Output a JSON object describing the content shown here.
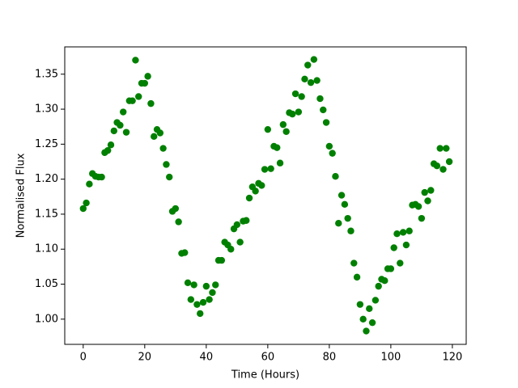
{
  "chart_data": {
    "type": "scatter",
    "xlabel": "Time (Hours)",
    "ylabel": "Normalised Flux",
    "color": "#008000",
    "x": [
      0,
      1,
      2,
      3,
      4,
      5,
      6,
      7,
      8,
      9,
      10,
      11,
      12,
      13,
      14,
      15,
      16,
      17,
      18,
      19,
      20,
      21,
      22,
      23,
      24,
      25,
      26,
      27,
      28,
      29,
      30,
      31,
      32,
      33,
      34,
      35,
      36,
      37,
      38,
      39,
      40,
      41,
      42,
      43,
      44,
      45,
      46,
      47,
      48,
      49,
      50,
      51,
      52,
      53,
      54,
      55,
      56,
      57,
      58,
      59,
      60,
      61,
      62,
      63,
      64,
      65,
      66,
      67,
      68,
      69,
      70,
      71,
      72,
      73,
      74,
      75,
      76,
      77,
      78,
      79,
      80,
      81,
      82,
      83,
      84,
      85,
      86,
      87,
      88,
      89,
      90,
      91,
      92,
      93,
      94,
      95,
      96,
      97,
      98,
      99,
      100,
      101,
      102,
      103,
      104,
      105,
      106,
      107,
      108,
      109,
      110,
      111,
      112,
      113,
      114,
      115,
      116,
      117,
      118,
      119
    ],
    "values": [
      1.158,
      1.166,
      1.193,
      1.208,
      1.204,
      1.203,
      1.203,
      1.238,
      1.241,
      1.249,
      1.269,
      1.281,
      1.277,
      1.296,
      1.267,
      1.312,
      1.312,
      1.37,
      1.318,
      1.337,
      1.337,
      1.347,
      1.308,
      1.261,
      1.271,
      1.266,
      1.244,
      1.221,
      1.203,
      1.154,
      1.158,
      1.139,
      1.094,
      1.095,
      1.052,
      1.028,
      1.049,
      1.021,
      1.008,
      1.024,
      1.047,
      1.028,
      1.038,
      1.049,
      1.084,
      1.084,
      1.11,
      1.106,
      1.1,
      1.129,
      1.135,
      1.11,
      1.14,
      1.141,
      1.173,
      1.189,
      1.183,
      1.194,
      1.191,
      1.214,
      1.271,
      1.215,
      1.247,
      1.245,
      1.223,
      1.278,
      1.268,
      1.295,
      1.293,
      1.322,
      1.296,
      1.318,
      1.343,
      1.363,
      1.338,
      1.371,
      1.341,
      1.315,
      1.299,
      1.281,
      1.247,
      1.237,
      1.204,
      1.137,
      1.177,
      1.164,
      1.144,
      1.126,
      1.08,
      1.06,
      1.021,
      1.0,
      0.983,
      1.015,
      0.995,
      1.027,
      1.047,
      1.057,
      1.055,
      1.072,
      1.072,
      1.102,
      1.122,
      1.08,
      1.124,
      1.106,
      1.126,
      1.163,
      1.164,
      1.161,
      1.144,
      1.181,
      1.169,
      1.184,
      1.222,
      1.219,
      1.244,
      1.214,
      1.244,
      1.225
    ],
    "xlim": [
      -6,
      124.5
    ],
    "ylim": [
      0.964,
      1.389
    ],
    "xticks": [
      0,
      20,
      40,
      60,
      80,
      100,
      120
    ],
    "yticks": [
      {
        "value": 1.0,
        "label": "1.00"
      },
      1.05,
      {
        "value": 1.1,
        "label": "1.10"
      },
      1.15,
      {
        "value": 1.2,
        "label": "1.20"
      },
      1.25,
      {
        "value": 1.3,
        "label": "1.30"
      },
      1.35
    ]
  }
}
